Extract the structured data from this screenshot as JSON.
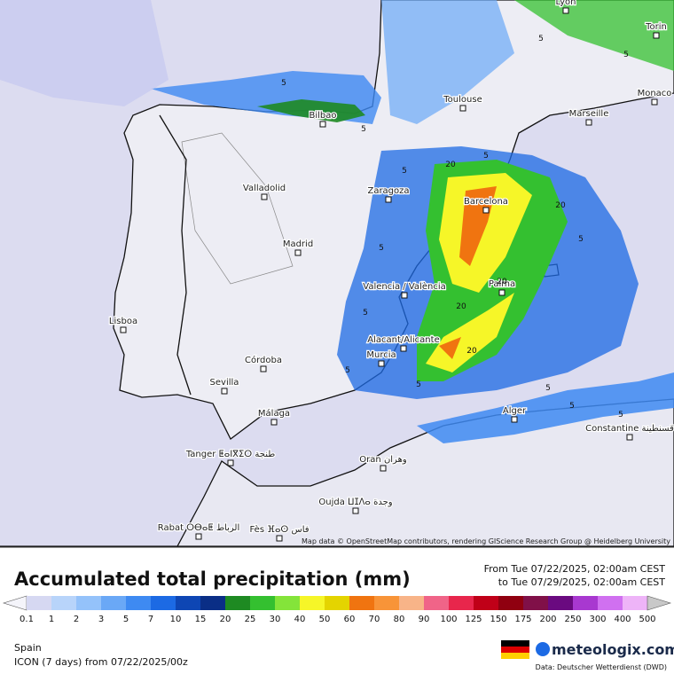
{
  "map": {
    "cities": [
      "Lyon",
      "Torin",
      "Monaco",
      "Toulouse",
      "Marseille",
      "Bilbao",
      "Valladolid",
      "Zaragoza",
      "Barcelona",
      "Madrid",
      "Valencia / València",
      "Palma",
      "Lisboa",
      "Alacant/Alicante",
      "Murcia",
      "Córdoba",
      "Sevilla",
      "Málaga",
      "Alger",
      "Constantine قسنطينة",
      "Tanger ⵟⴰⵏⴳⵉⵔ طنجة",
      "Oran وهران",
      "Oujda ⵡⵊⴷⴰ وجدة",
      "Rabat ⵔⴱⴰⵟ الرباط",
      "Fès ⴼⴰⵙ فاس"
    ],
    "contour_labels": [
      "5",
      "5",
      "5",
      "5",
      "5",
      "5",
      "5",
      "5",
      "5",
      "5",
      "20",
      "20",
      "20",
      "20",
      "20",
      "5",
      "5",
      "5",
      "5"
    ],
    "attribution": "Map data © OpenStreetMap contributors, rendering GIScience Research Group @ Heidelberg University"
  },
  "legend": {
    "title": "Accumulated total precipitation (mm)",
    "from": "From Tue 07/22/2025, 02:00am CEST",
    "to": "to Tue 07/29/2025, 02:00am CEST",
    "ticks": [
      "0.1",
      "1",
      "2",
      "3",
      "5",
      "7",
      "10",
      "15",
      "20",
      "25",
      "30",
      "40",
      "50",
      "60",
      "70",
      "80",
      "90",
      "100",
      "125",
      "150",
      "175",
      "200",
      "250",
      "300",
      "400",
      "500"
    ],
    "colors": [
      "#f4f4fa",
      "#d6d8f2",
      "#b8d4fa",
      "#94c2fa",
      "#6aa8f6",
      "#3e8af2",
      "#1c6ae4",
      "#0e46b4",
      "#0a2e86",
      "#1e8a22",
      "#34c030",
      "#84e43a",
      "#f6f628",
      "#e4d400",
      "#f07410",
      "#f89438",
      "#f8b488",
      "#f06488",
      "#e8264c",
      "#c00018",
      "#900010",
      "#801048",
      "#6a0a80",
      "#a838d0",
      "#d070f0",
      "#eeb4f8",
      "#c8c8c8"
    ]
  },
  "footer": {
    "region": "Spain",
    "model": "ICON (7 days) from 07/22/2025/00z",
    "brand": "meteologix.com",
    "source": "Data: Deutscher Wetterdienst (DWD)"
  }
}
